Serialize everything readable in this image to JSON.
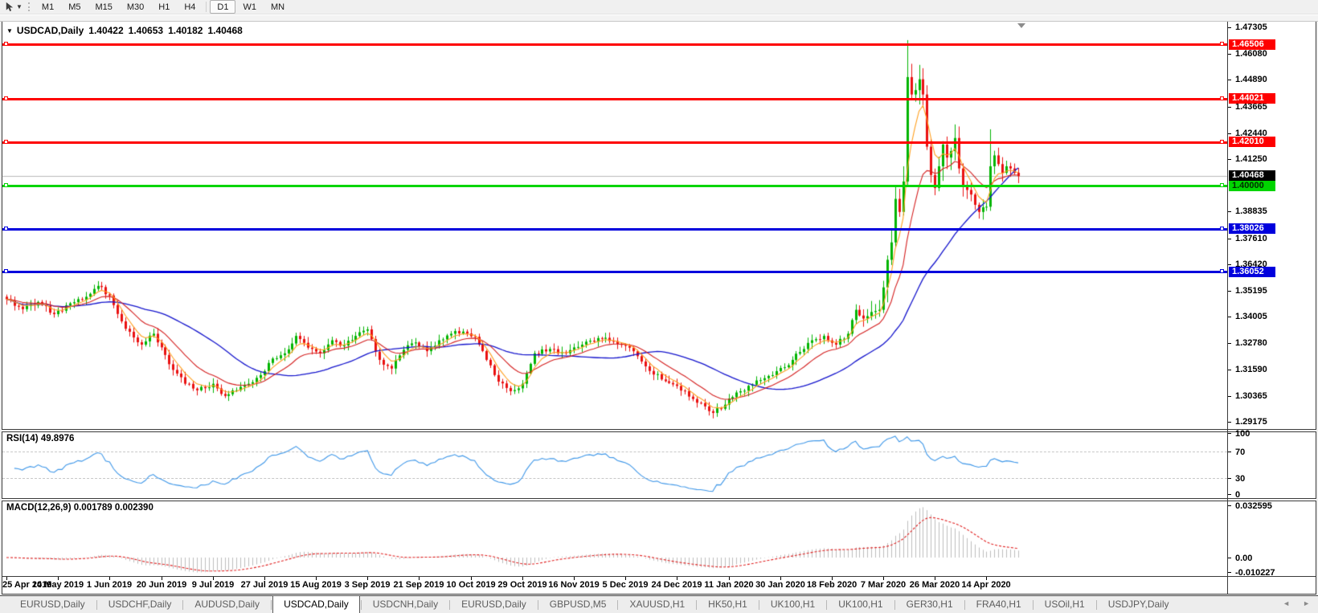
{
  "toolbar": {
    "timeframes": [
      "M1",
      "M5",
      "M15",
      "M30",
      "H1",
      "H4",
      "D1",
      "W1",
      "MN"
    ],
    "active_timeframe": "D1"
  },
  "chart": {
    "title": {
      "symbol_period": "USDCAD,Daily",
      "open": "1.40422",
      "high": "1.40653",
      "low": "1.40182",
      "close": "1.40468"
    },
    "price_axis_ticks": [
      "1.47305",
      "1.46080",
      "1.44890",
      "1.43665",
      "1.42440",
      "1.41250",
      "1.38835",
      "1.37610",
      "1.36420",
      "1.35195",
      "1.34005",
      "1.32780",
      "1.31590",
      "1.30365",
      "1.29175"
    ],
    "current_price_badge": {
      "label": "1.40468",
      "price": 1.40468,
      "bg": "#000000",
      "fg": "#ffffff"
    },
    "horizontal_lines": [
      {
        "label": "1.46506",
        "price": 1.46506,
        "color": "#fe0000",
        "badge_fg": "#ffffff"
      },
      {
        "label": "1.44021",
        "price": 1.44021,
        "color": "#fe0000",
        "badge_fg": "#ffffff"
      },
      {
        "label": "1.42010",
        "price": 1.4201,
        "color": "#fe0000",
        "badge_fg": "#ffffff"
      },
      {
        "label": "1.40000",
        "price": 1.4,
        "color": "#00d500",
        "badge_fg": "#002b00"
      },
      {
        "label": "1.38026",
        "price": 1.38026,
        "color": "#0000dd",
        "badge_fg": "#ffffff"
      },
      {
        "label": "1.36052",
        "price": 1.36052,
        "color": "#0000dd",
        "badge_fg": "#ffffff"
      }
    ]
  },
  "rsi_panel": {
    "label": "RSI(14) 49.8976",
    "ticks": [
      "100",
      "70",
      "30",
      "0"
    ],
    "tick_values": [
      100,
      70,
      30,
      0
    ]
  },
  "macd_panel": {
    "label": "MACD(12,26,9) 0.001789 0.002390",
    "ticks": [
      "0.032595",
      "0.00",
      "-0.010227"
    ],
    "tick_values": [
      0.032595,
      0,
      -0.010227
    ]
  },
  "tabs": {
    "items": [
      "EURUSD,Daily",
      "USDCHF,Daily",
      "AUDUSD,Daily",
      "USDCAD,Daily",
      "USDCNH,Daily",
      "EURUSD,Daily",
      "GBPUSD,M5",
      "XAUUSD,H1",
      "HK50,H1",
      "UK100,H1",
      "UK100,H1",
      "GER30,H1",
      "FRA40,H1",
      "USOil,H1",
      "USDJPY,Daily"
    ],
    "active_index": 3
  },
  "tab_scroll": {
    "left": "◄",
    "right": "►"
  },
  "chart_data": {
    "type": "candlestick",
    "symbol": "USDCAD",
    "period": "Daily",
    "title": "USDCAD,Daily 1.40422 1.40653 1.40182 1.40468",
    "ohlc_current": {
      "open": 1.40422,
      "high": 1.40653,
      "low": 1.40182,
      "close": 1.40468
    },
    "x_labels": [
      "25 Apr 2019",
      "14 May 2019",
      "1 Jun 2019",
      "20 Jun 2019",
      "9 Jul 2019",
      "27 Jul 2019",
      "15 Aug 2019",
      "3 Sep 2019",
      "21 Sep 2019",
      "10 Oct 2019",
      "29 Oct 2019",
      "16 Nov 2019",
      "5 Dec 2019",
      "24 Dec 2019",
      "11 Jan 2020",
      "30 Jan 2020",
      "18 Feb 2020",
      "7 Mar 2020",
      "26 Mar 2020",
      "14 Apr 2020"
    ],
    "bars_per_date_label": 13,
    "bar_count": 256,
    "y_ticks": [
      1.47305,
      1.4608,
      1.4489,
      1.43665,
      1.4244,
      1.4125,
      1.38835,
      1.3761,
      1.3642,
      1.35195,
      1.34005,
      1.3278,
      1.3159,
      1.30365,
      1.29175
    ],
    "price_axis_range": [
      1.2884,
      1.4753
    ],
    "grid": false,
    "close_path_anchors": [
      [
        0,
        1.348
      ],
      [
        4,
        1.3435
      ],
      [
        8,
        1.3468
      ],
      [
        12,
        1.3412
      ],
      [
        16,
        1.3462
      ],
      [
        20,
        1.3492
      ],
      [
        23,
        1.3542
      ],
      [
        26,
        1.3498
      ],
      [
        30,
        1.3345
      ],
      [
        34,
        1.3272
      ],
      [
        37,
        1.3322
      ],
      [
        41,
        1.3182
      ],
      [
        45,
        1.3092
      ],
      [
        48,
        1.3062
      ],
      [
        52,
        1.3092
      ],
      [
        55,
        1.3036
      ],
      [
        58,
        1.3062
      ],
      [
        61,
        1.3092
      ],
      [
        64,
        1.3132
      ],
      [
        67,
        1.3208
      ],
      [
        70,
        1.3232
      ],
      [
        73,
        1.3312
      ],
      [
        76,
        1.3258
      ],
      [
        79,
        1.3232
      ],
      [
        82,
        1.3292
      ],
      [
        85,
        1.3268
      ],
      [
        88,
        1.3312
      ],
      [
        91,
        1.3342
      ],
      [
        94,
        1.3202
      ],
      [
        97,
        1.3162
      ],
      [
        100,
        1.3248
      ],
      [
        103,
        1.3282
      ],
      [
        106,
        1.3242
      ],
      [
        109,
        1.3292
      ],
      [
        112,
        1.3322
      ],
      [
        115,
        1.3332
      ],
      [
        118,
        1.3308
      ],
      [
        121,
        1.3202
      ],
      [
        124,
        1.3102
      ],
      [
        127,
        1.3058
      ],
      [
        130,
        1.3092
      ],
      [
        133,
        1.3232
      ],
      [
        137,
        1.3252
      ],
      [
        141,
        1.3232
      ],
      [
        145,
        1.3272
      ],
      [
        149,
        1.3302
      ],
      [
        153,
        1.3288
      ],
      [
        157,
        1.3258
      ],
      [
        161,
        1.3172
      ],
      [
        165,
        1.3112
      ],
      [
        169,
        1.3082
      ],
      [
        173,
        1.3022
      ],
      [
        176,
        1.2988
      ],
      [
        178,
        1.2958
      ],
      [
        181,
        1.2996
      ],
      [
        184,
        1.3052
      ],
      [
        188,
        1.3088
      ],
      [
        192,
        1.3128
      ],
      [
        196,
        1.3168
      ],
      [
        200,
        1.3238
      ],
      [
        203,
        1.3292
      ],
      [
        206,
        1.3312
      ],
      [
        209,
        1.3272
      ],
      [
        212,
        1.3322
      ],
      [
        214,
        1.3432
      ],
      [
        216,
        1.3392
      ],
      [
        218,
        1.3422
      ],
      [
        220,
        1.3432
      ],
      [
        222,
        1.3662
      ],
      [
        223,
        1.3742
      ],
      [
        224,
        1.3942
      ],
      [
        225,
        1.3882
      ],
      [
        226,
        1.4022
      ],
      [
        227,
        1.4502
      ],
      [
        228,
        1.4422
      ],
      [
        229,
        1.4442
      ],
      [
        230,
        1.4492
      ],
      [
        231,
        1.4422
      ],
      [
        232,
        1.4182
      ],
      [
        233,
        1.4052
      ],
      [
        234,
        1.3992
      ],
      [
        235,
        1.4092
      ],
      [
        236,
        1.4192
      ],
      [
        237,
        1.4132
      ],
      [
        238,
        1.4162
      ],
      [
        239,
        1.4222
      ],
      [
        240,
        1.4082
      ],
      [
        241,
        1.4002
      ],
      [
        243,
        1.3962
      ],
      [
        245,
        1.3882
      ],
      [
        247,
        1.3906
      ],
      [
        248,
        1.4092
      ],
      [
        249,
        1.4142
      ],
      [
        250,
        1.4102
      ],
      [
        251,
        1.4062
      ],
      [
        252,
        1.4092
      ],
      [
        253,
        1.4082
      ],
      [
        254,
        1.4062
      ],
      [
        255,
        1.40468
      ]
    ],
    "feature_bars": {
      "227": {
        "high": 1.4672
      },
      "248": {
        "high": 1.4262
      }
    },
    "bull_color": "#00b400",
    "bear_color": "#ea1010",
    "current_price_line_color": "#b8b8b8",
    "moving_averages": [
      {
        "name": "fast",
        "period": 5,
        "type": "ema",
        "color": "#ff9f1f"
      },
      {
        "name": "medium",
        "period": 14,
        "type": "ema",
        "color": "#d42020"
      },
      {
        "name": "slow",
        "period": 34,
        "type": "sma",
        "color": "#1414cc"
      }
    ],
    "horizontal_levels": [
      1.46506,
      1.44021,
      1.4201,
      1.4,
      1.38026,
      1.36052
    ],
    "rsi": {
      "period": 14,
      "current": 49.8976,
      "levels": [
        70,
        30
      ],
      "range": [
        0,
        100
      ],
      "color": "#3d96e8"
    },
    "macd": {
      "fast": 12,
      "slow": 26,
      "signal": 9,
      "current_main": 0.001789,
      "current_signal": 0.00239,
      "axis_max": 0.032595,
      "axis_min": -0.010227,
      "hist_color": "#bcbcbc",
      "signal_color": "#e02020"
    }
  }
}
